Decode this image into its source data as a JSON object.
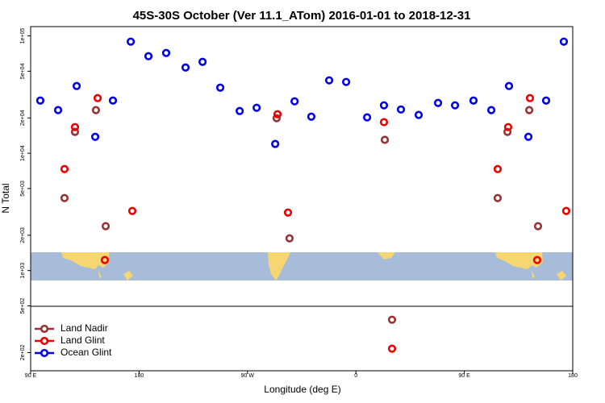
{
  "chart_data": {
    "type": "scatter",
    "title": "45S-30S October (Ver 11.1_ATom)   2016-01-01 to 2018-12-31",
    "x_label": "Longitude (deg E)",
    "y_label": "N Total",
    "log_y": true,
    "legend": "bottom-left",
    "xlim": [
      90,
      540
    ],
    "xticks": [
      {
        "value": 90,
        "label": "90 E"
      },
      {
        "value": 180,
        "label": "180"
      },
      {
        "value": 270,
        "label": "90 W"
      },
      {
        "value": 360,
        "label": "0"
      },
      {
        "value": 450,
        "label": "90 E"
      },
      {
        "value": 540,
        "label": "180"
      }
    ],
    "ylim": [
      140,
      120000
    ],
    "yticks": [
      {
        "value": 100000,
        "label": "1e+05"
      },
      {
        "value": 50000,
        "label": "5e+04"
      },
      {
        "value": 20000,
        "label": "2e+04"
      },
      {
        "value": 10000,
        "label": "1e+04"
      },
      {
        "value": 5000,
        "label": "5e+03"
      },
      {
        "value": 2000,
        "label": "2e+03"
      },
      {
        "value": 1000,
        "label": "1e+03"
      },
      {
        "value": 500,
        "label": "5e+02"
      },
      {
        "value": 200,
        "label": "2e+02"
      }
    ],
    "series": [
      {
        "name": "Land Nadir",
        "color": "#993333",
        "x": [
          118.1,
          126.8,
          144.2,
          152.3,
          294.2,
          304.9,
          384.0,
          390.0,
          477.7,
          485.8,
          503.9,
          511.2
        ],
        "values": [
          4150,
          15200,
          23300,
          2390,
          19900,
          1880,
          13000,
          381,
          4150,
          15200,
          23300,
          2390
        ]
      },
      {
        "name": "Land Glint",
        "color": "#ee0000",
        "x": [
          118.1,
          126.8,
          145.6,
          151.6,
          174.4,
          294.9,
          303.6,
          383.3,
          390.0,
          477.7,
          486.4,
          504.5,
          510.5,
          534.6
        ],
        "values": [
          7330,
          16700,
          29500,
          1230,
          3220,
          21500,
          3120,
          18400,
          216,
          7330,
          16700,
          29500,
          1230,
          3220
        ]
      },
      {
        "name": "Ocean Glint",
        "color": "#0000ee",
        "x": [
          98.0,
          112.8,
          128.2,
          143.6,
          158.3,
          173.1,
          187.8,
          202.5,
          218.6,
          232.7,
          247.4,
          263.5,
          277.6,
          293.0,
          309.1,
          323.0,
          337.8,
          351.9,
          369.3,
          383.3,
          397.4,
          412.1,
          428.2,
          442.3,
          457.6,
          472.4,
          487.1,
          503.2,
          517.9,
          532.6
        ],
        "values": [
          28100,
          23300,
          37400,
          13800,
          28100,
          89300,
          67100,
          71500,
          53800,
          60100,
          36200,
          22900,
          24400,
          12000,
          27700,
          20500,
          41800,
          40500,
          20200,
          25600,
          23600,
          21200,
          26800,
          25600,
          28100,
          23300,
          37400,
          13800,
          28100,
          89300
        ]
      }
    ]
  }
}
